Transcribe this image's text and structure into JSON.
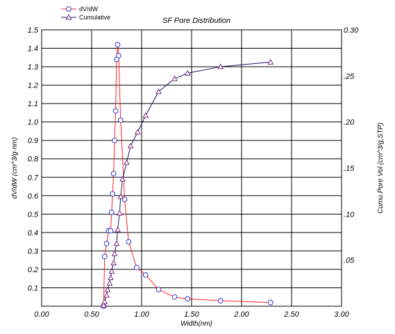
{
  "chart_data": {
    "type": "line",
    "title": "SF Pore Distribution",
    "xlabel": "Width(nm)",
    "ylabel_left": "dV/dW (cm^3/g·nm)",
    "ylabel_right": "Cumu.Pore Vol (cm^3/g,STP)",
    "xlim": [
      0,
      3.0
    ],
    "ylim_left": [
      0,
      1.5
    ],
    "ylim_right": [
      0,
      0.3
    ],
    "x_ticks": [
      "0.00",
      "0.50",
      "1.00",
      "1.50",
      "2.00",
      "2.50",
      "3.00"
    ],
    "y_ticks_left": [
      "0.1",
      "0.2",
      "0.3",
      "0.4",
      "0.5",
      "0.6",
      "0.7",
      "0.8",
      "0.9",
      "1.0",
      "1.1",
      "1.2",
      "1.3",
      "1.4",
      "1.5"
    ],
    "y_ticks_right": [
      ".05",
      ".10",
      ".15",
      ".20",
      ".25",
      "0.30"
    ],
    "grid": true,
    "legend_position": "top-left",
    "series": [
      {
        "name": "dV/dW",
        "axis": "left",
        "marker": "circle",
        "color": "#ff2020",
        "marker_color": "#3333cc",
        "x": [
          0.62,
          0.63,
          0.65,
          0.67,
          0.69,
          0.7,
          0.71,
          0.72,
          0.73,
          0.74,
          0.75,
          0.76,
          0.77,
          0.79,
          0.83,
          0.87,
          0.95,
          1.04,
          1.17,
          1.33,
          1.46,
          1.79,
          2.29
        ],
        "y": [
          0.0,
          0.27,
          0.34,
          0.41,
          0.41,
          0.51,
          0.61,
          0.72,
          0.9,
          1.06,
          1.34,
          1.42,
          1.36,
          1.01,
          0.58,
          0.35,
          0.21,
          0.17,
          0.09,
          0.05,
          0.04,
          0.03,
          0.02
        ]
      },
      {
        "name": "Cumulative",
        "axis": "right",
        "marker": "triangle",
        "color": "#151565",
        "marker_color": "#7a2a7a",
        "x": [
          0.62,
          0.63,
          0.65,
          0.66,
          0.68,
          0.69,
          0.7,
          0.72,
          0.73,
          0.75,
          0.76,
          0.78,
          0.79,
          0.81,
          0.85,
          0.89,
          0.96,
          1.04,
          1.17,
          1.33,
          1.46,
          1.79,
          2.29
        ],
        "y": [
          0.001,
          0.005,
          0.012,
          0.018,
          0.025,
          0.031,
          0.038,
          0.047,
          0.057,
          0.068,
          0.083,
          0.101,
          0.119,
          0.138,
          0.156,
          0.174,
          0.189,
          0.207,
          0.233,
          0.247,
          0.253,
          0.26,
          0.265
        ]
      }
    ]
  }
}
